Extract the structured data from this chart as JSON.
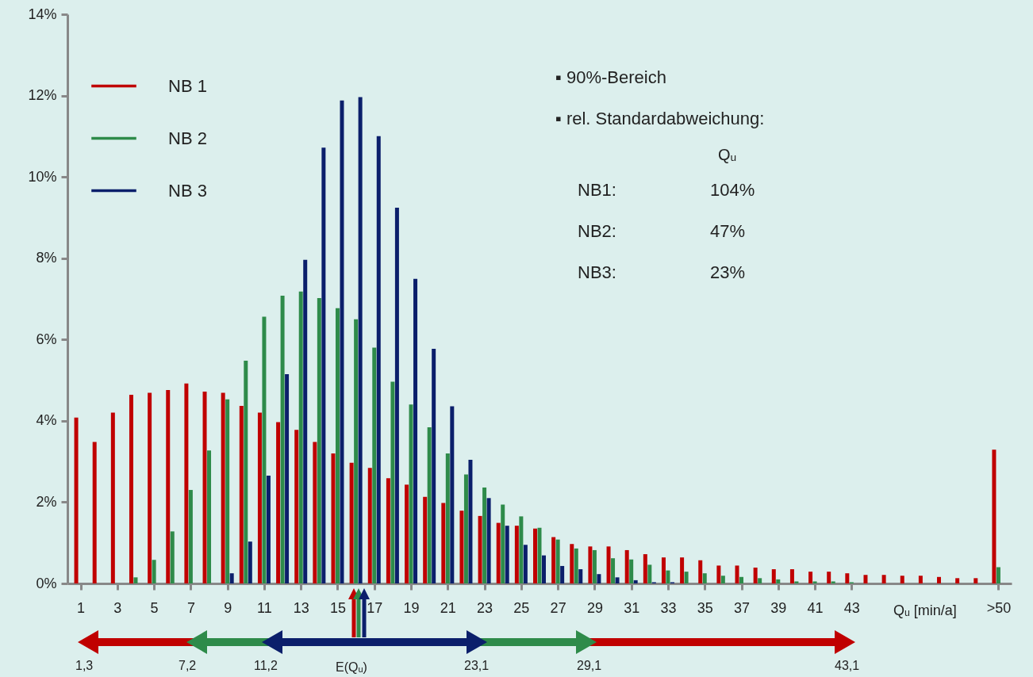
{
  "chart_data": {
    "type": "bar",
    "xlabel": "Qᵤ [min/a]",
    "x": [
      1,
      2,
      3,
      4,
      5,
      6,
      7,
      8,
      9,
      10,
      11,
      12,
      13,
      14,
      15,
      16,
      17,
      18,
      19,
      20,
      21,
      22,
      23,
      24,
      25,
      26,
      27,
      28,
      29,
      30,
      31,
      32,
      33,
      34,
      35,
      36,
      37,
      38,
      39,
      40,
      41,
      42,
      43,
      44,
      45,
      46,
      47,
      48,
      49,
      50,
      51
    ],
    "xlim": [
      0.5,
      51.5
    ],
    "xticks": [
      1,
      3,
      5,
      7,
      9,
      11,
      13,
      15,
      17,
      19,
      21,
      23,
      25,
      27,
      29,
      31,
      33,
      35,
      37,
      39,
      41,
      43,
      {
        "value": 51,
        "label": ">50"
      }
    ],
    "ylim": [
      0,
      14
    ],
    "yticks": [
      {
        "value": 0,
        "label": "0%"
      },
      {
        "value": 2,
        "label": "2%"
      },
      {
        "value": 4,
        "label": "4%"
      },
      {
        "value": 6,
        "label": "6%"
      },
      {
        "value": 8,
        "label": "8%"
      },
      {
        "value": 10,
        "label": "10%"
      },
      {
        "value": 12,
        "label": "12%"
      },
      {
        "value": 14,
        "label": "14%"
      }
    ],
    "legend": "top left",
    "series": [
      {
        "name": "NB 1",
        "color": "#c00000",
        "values": [
          4.08,
          3.48,
          4.2,
          4.64,
          4.69,
          4.76,
          4.92,
          4.72,
          4.69,
          4.37,
          4.2,
          3.97,
          3.78,
          3.48,
          3.2,
          2.97,
          2.84,
          2.59,
          2.43,
          2.13,
          1.98,
          1.79,
          1.66,
          1.49,
          1.42,
          1.35,
          1.14,
          0.97,
          0.91,
          0.91,
          0.82,
          0.72,
          0.64,
          0.64,
          0.57,
          0.44,
          0.44,
          0.39,
          0.35,
          0.35,
          0.29,
          0.29,
          0.25,
          0.21,
          0.21,
          0.19,
          0.19,
          0.16,
          0.13,
          0.13,
          3.29
        ]
      },
      {
        "name": "NB 2",
        "color": "#2e8b4a",
        "values": [
          0,
          0,
          0,
          0.15,
          0.58,
          1.28,
          2.3,
          3.27,
          4.53,
          5.48,
          6.56,
          7.08,
          7.18,
          7.02,
          6.77,
          6.5,
          5.8,
          4.96,
          4.4,
          3.84,
          3.2,
          2.68,
          2.36,
          1.94,
          1.65,
          1.37,
          1.08,
          0.86,
          0.82,
          0.62,
          0.59,
          0.46,
          0.32,
          0.29,
          0.25,
          0.19,
          0.16,
          0.13,
          0.1,
          0.05,
          0.05,
          0.05,
          0.03,
          0,
          0,
          0,
          0,
          0,
          0,
          0,
          0.4
        ]
      },
      {
        "name": "NB 3",
        "color": "#0b1f6b",
        "values": [
          0,
          0,
          0,
          0,
          0,
          0,
          0,
          0,
          0.25,
          1.03,
          2.65,
          5.15,
          7.96,
          10.72,
          11.88,
          11.96,
          11.0,
          9.24,
          7.49,
          5.77,
          4.36,
          3.04,
          2.1,
          1.42,
          0.95,
          0.69,
          0.43,
          0.35,
          0.23,
          0.15,
          0.08,
          0.03,
          0.03,
          0,
          0,
          0,
          0,
          0,
          0,
          0,
          0,
          0,
          0,
          0,
          0,
          0,
          0,
          0,
          0,
          0,
          0
        ]
      }
    ],
    "annotations": [
      "▪ 90%-Bereich",
      "▪ rel. Standardabweichung:",
      "Qᵤ",
      "NB1:",
      "104%",
      "NB2:",
      "47%",
      "NB3:",
      "23%",
      "1,3",
      "7,2",
      "11,2",
      "E(Qᵤ)",
      "23,1",
      "29,1",
      "43,1"
    ]
  }
}
